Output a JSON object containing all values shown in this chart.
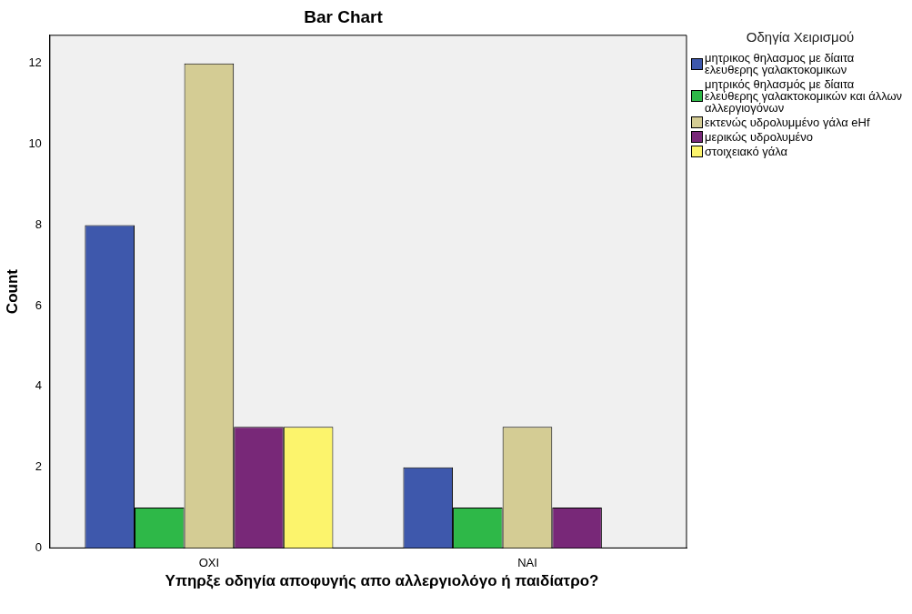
{
  "chart_data": {
    "type": "bar",
    "title": "Bar Chart",
    "xlabel": "Υπηρξε οδηγία αποφυγής απο αλλεργιολόγο ή παιδίατρο?",
    "ylabel": "Count",
    "legend_title": "Οδηγία Χειρισμού",
    "categories": [
      "ΟΧΙ",
      "ΝΑΙ"
    ],
    "series": [
      {
        "name": "μητρικος θηλασμος με δίαιτα ελευθερης γαλακτοκομικων",
        "color": "#3e58ac",
        "values": [
          8,
          2
        ]
      },
      {
        "name": "μητρικός θηλασμός με δίαιτα ελεύθερης γαλακτοκομικών και άλλων αλλεργιογόνων",
        "color": "#2eb848",
        "values": [
          1,
          1
        ]
      },
      {
        "name": "εκτενώς υδρολυμμένο γάλα eHf",
        "color": "#d4cc94",
        "values": [
          12,
          3
        ]
      },
      {
        "name": "μερικώς υδρολυμένο",
        "color": "#782878",
        "values": [
          3,
          1
        ]
      },
      {
        "name": "στοιχειακό γάλα",
        "color": "#fcf46c",
        "values": [
          3,
          null
        ]
      }
    ],
    "ylim": [
      0,
      12.7
    ],
    "yticks": [
      0,
      2,
      4,
      6,
      8,
      10,
      12
    ],
    "grid": false,
    "legend": "right"
  }
}
